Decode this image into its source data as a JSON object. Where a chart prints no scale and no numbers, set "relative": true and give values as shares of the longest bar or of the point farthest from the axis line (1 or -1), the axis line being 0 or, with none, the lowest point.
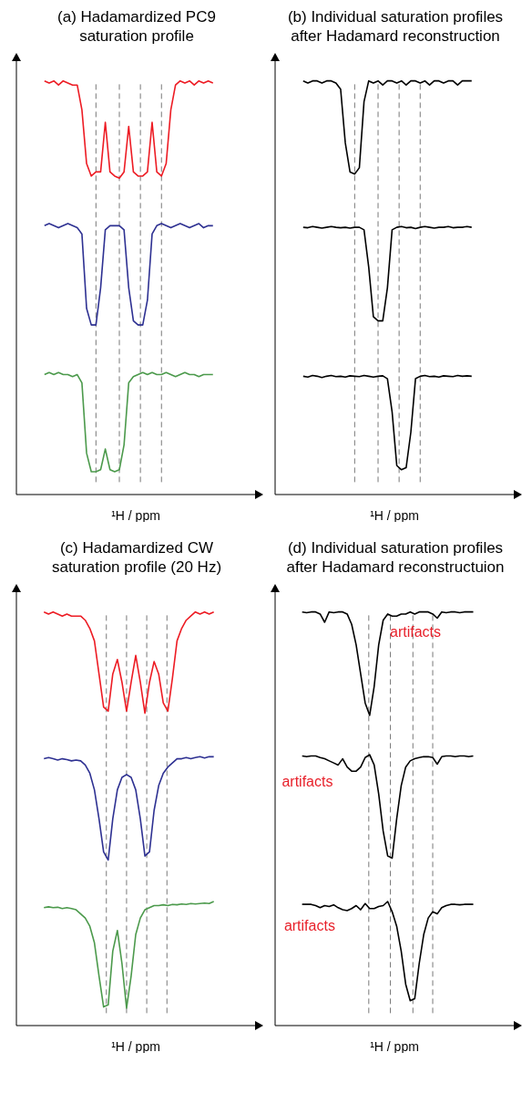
{
  "chart_data": [
    {
      "type": "line",
      "title": "(a) Hadamardized PC9\nsaturation profile",
      "xlabel": "¹H / ppm",
      "relative": true,
      "tick_labels": false,
      "marker": "none",
      "line_style": "solid",
      "categories": [
        null,
        null,
        null,
        null,
        null,
        null,
        null,
        null,
        null,
        null,
        null,
        null,
        null,
        null,
        null,
        null,
        null,
        null,
        null,
        null,
        null,
        null,
        null,
        null,
        null,
        null,
        null,
        null,
        null,
        null,
        null,
        null,
        null,
        null,
        null,
        null,
        null
      ],
      "series": [
        {
          "color": "#ed1c24",
          "values": [
            1,
            0.995,
            1,
            0.99,
            1,
            0.995,
            0.99,
            0.99,
            0.93,
            0.8,
            0.77,
            0.78,
            0.78,
            0.9,
            0.78,
            0.77,
            0.765,
            0.78,
            0.89,
            0.78,
            0.77,
            0.77,
            0.78,
            0.9,
            0.78,
            0.77,
            0.8,
            0.93,
            0.99,
            1,
            0.995,
            1,
            0.99,
            1,
            0.995,
            1,
            0.995
          ]
        },
        {
          "color": "#2e3192",
          "values": [
            0.65,
            0.655,
            0.65,
            0.645,
            0.65,
            0.655,
            0.65,
            0.645,
            0.63,
            0.45,
            0.41,
            0.41,
            0.5,
            0.64,
            0.65,
            0.65,
            0.65,
            0.64,
            0.5,
            0.42,
            0.41,
            0.41,
            0.47,
            0.63,
            0.65,
            0.655,
            0.65,
            0.645,
            0.65,
            0.655,
            0.65,
            0.645,
            0.65,
            0.655,
            0.645,
            0.65,
            0.65
          ]
        },
        {
          "color": "#4c9a4c",
          "values": [
            0.29,
            0.295,
            0.29,
            0.295,
            0.29,
            0.29,
            0.285,
            0.29,
            0.27,
            0.1,
            0.055,
            0.055,
            0.06,
            0.11,
            0.06,
            0.055,
            0.06,
            0.12,
            0.27,
            0.285,
            0.29,
            0.295,
            0.29,
            0.295,
            0.29,
            0.29,
            0.295,
            0.29,
            0.285,
            0.29,
            0.295,
            0.29,
            0.29,
            0.285,
            0.29,
            0.29,
            0.29
          ]
        }
      ],
      "grid": "x"
    },
    {
      "type": "line",
      "title": "(b) Individual saturation profiles\nafter Hadamard reconstruction",
      "xlabel": "¹H / ppm",
      "relative": true,
      "tick_labels": false,
      "marker": "none",
      "line_style": "solid",
      "categories": [
        null,
        null,
        null,
        null,
        null,
        null,
        null,
        null,
        null,
        null,
        null,
        null,
        null,
        null,
        null,
        null,
        null,
        null,
        null,
        null,
        null,
        null,
        null,
        null,
        null,
        null,
        null,
        null,
        null,
        null,
        null,
        null,
        null,
        null,
        null,
        null,
        null
      ],
      "series": [
        {
          "color": "#000000",
          "values": [
            1,
            0.995,
            1,
            1,
            0.995,
            1,
            1,
            0.995,
            0.98,
            0.85,
            0.78,
            0.775,
            0.79,
            0.95,
            1,
            0.995,
            1,
            0.99,
            1,
            1,
            0.995,
            1,
            0.99,
            1,
            1,
            0.995,
            1,
            0.99,
            1,
            1,
            0.995,
            1,
            1,
            0.99,
            1,
            1,
            1
          ]
        },
        {
          "color": "#000000",
          "values": [
            0.646,
            0.645,
            0.648,
            0.646,
            0.644,
            0.646,
            0.648,
            0.646,
            0.645,
            0.646,
            0.644,
            0.646,
            0.646,
            0.64,
            0.55,
            0.43,
            0.42,
            0.42,
            0.5,
            0.64,
            0.646,
            0.648,
            0.645,
            0.646,
            0.643,
            0.646,
            0.648,
            0.646,
            0.644,
            0.646,
            0.646,
            0.648,
            0.645,
            0.646,
            0.646,
            0.648,
            0.646
          ]
        },
        {
          "color": "#000000",
          "values": [
            0.286,
            0.284,
            0.288,
            0.286,
            0.283,
            0.286,
            0.288,
            0.285,
            0.286,
            0.284,
            0.287,
            0.286,
            0.285,
            0.288,
            0.286,
            0.284,
            0.286,
            0.287,
            0.28,
            0.2,
            0.07,
            0.06,
            0.065,
            0.15,
            0.28,
            0.286,
            0.288,
            0.285,
            0.286,
            0.284,
            0.287,
            0.286,
            0.285,
            0.288,
            0.286,
            0.287,
            0.286
          ]
        }
      ],
      "grid": "x"
    },
    {
      "type": "line",
      "title": "(c) Hadamardized CW\nsaturation profile (20 Hz)",
      "xlabel": "¹H / ppm",
      "relative": true,
      "tick_labels": false,
      "marker": "none",
      "line_style": "solid",
      "categories": [
        null,
        null,
        null,
        null,
        null,
        null,
        null,
        null,
        null,
        null,
        null,
        null,
        null,
        null,
        null,
        null,
        null,
        null,
        null,
        null,
        null,
        null,
        null,
        null,
        null,
        null,
        null,
        null,
        null,
        null,
        null,
        null,
        null,
        null,
        null,
        null,
        null,
        null
      ],
      "series": [
        {
          "color": "#ed1c24",
          "values": [
            1,
            0.995,
            1,
            0.995,
            0.99,
            0.995,
            0.99,
            0.99,
            0.99,
            0.98,
            0.96,
            0.93,
            0.85,
            0.77,
            0.76,
            0.85,
            0.885,
            0.83,
            0.76,
            0.83,
            0.895,
            0.83,
            0.755,
            0.83,
            0.88,
            0.85,
            0.78,
            0.76,
            0.84,
            0.93,
            0.96,
            0.98,
            0.99,
            1,
            0.995,
            1,
            0.995,
            1
          ]
        },
        {
          "color": "#2e3192",
          "values": [
            0.645,
            0.648,
            0.645,
            0.642,
            0.645,
            0.643,
            0.64,
            0.642,
            0.64,
            0.63,
            0.61,
            0.57,
            0.5,
            0.42,
            0.4,
            0.5,
            0.57,
            0.6,
            0.607,
            0.6,
            0.57,
            0.5,
            0.41,
            0.42,
            0.52,
            0.58,
            0.61,
            0.625,
            0.635,
            0.645,
            0.645,
            0.648,
            0.645,
            0.648,
            0.65,
            0.647,
            0.65,
            0.65
          ]
        },
        {
          "color": "#4c9a4c",
          "values": [
            0.285,
            0.287,
            0.285,
            0.286,
            0.283,
            0.285,
            0.283,
            0.28,
            0.27,
            0.26,
            0.24,
            0.2,
            0.12,
            0.045,
            0.05,
            0.18,
            0.23,
            0.15,
            0.042,
            0.12,
            0.22,
            0.26,
            0.28,
            0.285,
            0.29,
            0.29,
            0.292,
            0.29,
            0.293,
            0.292,
            0.294,
            0.293,
            0.295,
            0.294,
            0.295,
            0.296,
            0.295,
            0.3
          ]
        }
      ],
      "grid": "x"
    },
    {
      "type": "line",
      "title": "(d) Individual saturation profiles\nafter Hadamard reconstructuion",
      "xlabel": "¹H / ppm",
      "relative": true,
      "tick_labels": false,
      "marker": "none",
      "line_style": "solid",
      "categories": [
        null,
        null,
        null,
        null,
        null,
        null,
        null,
        null,
        null,
        null,
        null,
        null,
        null,
        null,
        null,
        null,
        null,
        null,
        null,
        null,
        null,
        null,
        null,
        null,
        null,
        null,
        null,
        null,
        null,
        null,
        null,
        null,
        null,
        null,
        null,
        null,
        null,
        null,
        null
      ],
      "series": [
        {
          "color": "#000000",
          "values": [
            1,
            0.998,
            1,
            1,
            0.995,
            0.975,
            1,
            0.998,
            1,
            1,
            0.995,
            0.97,
            0.92,
            0.85,
            0.78,
            0.75,
            0.82,
            0.92,
            0.98,
            0.995,
            0.99,
            0.99,
            0.995,
            0.995,
            1,
            0.995,
            1,
            1,
            1,
            0.995,
            0.985,
            1,
            0.998,
            1,
            1,
            0.998,
            1,
            1,
            1
          ]
        },
        {
          "color": "#000000",
          "values": [
            0.652,
            0.65,
            0.652,
            0.652,
            0.648,
            0.645,
            0.64,
            0.635,
            0.63,
            0.645,
            0.625,
            0.615,
            0.615,
            0.625,
            0.648,
            0.655,
            0.63,
            0.56,
            0.47,
            0.41,
            0.405,
            0.5,
            0.58,
            0.625,
            0.64,
            0.645,
            0.648,
            0.65,
            0.65,
            0.648,
            0.632,
            0.65,
            0.652,
            0.652,
            0.65,
            0.652,
            0.652,
            0.65,
            0.652
          ]
        },
        {
          "color": "#000000",
          "values": [
            0.293,
            0.293,
            0.293,
            0.29,
            0.285,
            0.29,
            0.288,
            0.292,
            0.285,
            0.28,
            0.278,
            0.283,
            0.29,
            0.28,
            0.295,
            0.283,
            0.283,
            0.288,
            0.29,
            0.3,
            0.275,
            0.24,
            0.18,
            0.1,
            0.06,
            0.065,
            0.15,
            0.22,
            0.26,
            0.275,
            0.27,
            0.285,
            0.29,
            0.293,
            0.293,
            0.292,
            0.293,
            0.293,
            0.293
          ]
        }
      ],
      "grid": "x",
      "annotations": [
        "artifacts",
        "artifacts",
        "artifacts"
      ]
    }
  ]
}
